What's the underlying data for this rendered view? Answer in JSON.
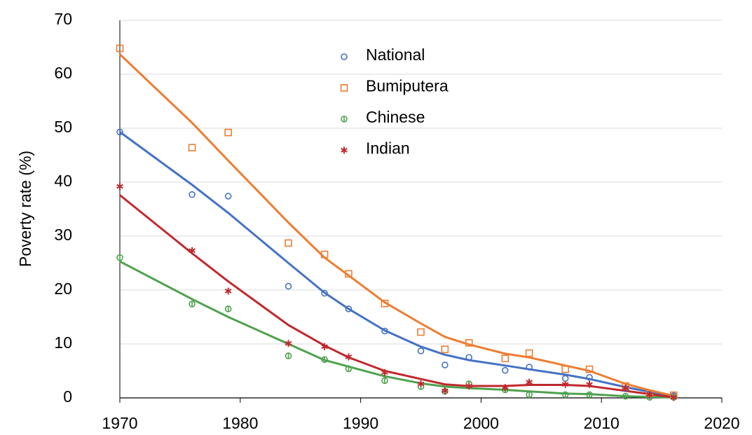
{
  "chart_data": {
    "type": "scatter",
    "y_label": "Poverty rate (%)",
    "x": [
      1970,
      1976,
      1979,
      1984,
      1987,
      1989,
      1992,
      1995,
      1997,
      1999,
      2002,
      2004,
      2007,
      2009,
      2012,
      2014,
      2016
    ],
    "series": [
      {
        "name": "National",
        "color": "#4472c4",
        "marker": "circle",
        "values": [
          49.3,
          37.7,
          37.4,
          20.7,
          19.4,
          16.5,
          12.4,
          8.7,
          6.1,
          7.5,
          5.1,
          5.7,
          3.6,
          3.8,
          1.7,
          0.6,
          0.4
        ],
        "trend": [
          49.3,
          39.5,
          34.3,
          25,
          19.5,
          16.5,
          12.5,
          9.5,
          8,
          7,
          6,
          5.3,
          4.3,
          3.5,
          2,
          1.1,
          0.3
        ]
      },
      {
        "name": "Bumiputera",
        "color": "#ed7d31",
        "marker": "square",
        "values": [
          64.8,
          46.4,
          49.2,
          28.7,
          26.6,
          23.0,
          17.5,
          12.2,
          9.0,
          10.2,
          7.3,
          8.3,
          5.3,
          5.3,
          2.2,
          0.8,
          0.5
        ],
        "trend": [
          63.7,
          51,
          44,
          32.5,
          26,
          22.7,
          17.7,
          13.8,
          11.3,
          9.9,
          8.2,
          7.5,
          6,
          5,
          2.6,
          1.4,
          0.4
        ]
      },
      {
        "name": "Chinese",
        "color": "#4ea24e",
        "marker": "circle-line",
        "values": [
          26.0,
          17.4,
          16.5,
          7.8,
          7.1,
          5.4,
          3.2,
          2.1,
          1.2,
          2.6,
          1.5,
          0.6,
          0.6,
          0.6,
          0.3,
          0.1,
          0.1
        ],
        "trend": [
          25.3,
          18.3,
          15,
          10,
          7,
          5.8,
          4,
          2.7,
          2.1,
          1.8,
          1.5,
          1.2,
          0.8,
          0.7,
          0.3,
          0.2,
          0.1
        ]
      },
      {
        "name": "Indian",
        "color": "#c0282d",
        "marker": "asterisk",
        "values": [
          39.2,
          27.3,
          19.8,
          10.1,
          9.5,
          7.6,
          4.7,
          2.6,
          1.3,
          2.2,
          1.9,
          2.9,
          2.5,
          2.5,
          1.8,
          0.6,
          0.1
        ],
        "trend": [
          37.6,
          26.8,
          21.6,
          13.5,
          9.7,
          7.5,
          5,
          3.5,
          2.5,
          2.2,
          2.2,
          2.4,
          2.4,
          2.2,
          1.3,
          0.7,
          0.1
        ]
      }
    ],
    "xlim": [
      1970,
      2020
    ],
    "xticks": [
      1970,
      1980,
      1990,
      2000,
      2010,
      2020
    ],
    "ylim": [
      0,
      70
    ],
    "yticks": [
      0,
      10,
      20,
      30,
      40,
      50,
      60,
      70
    ],
    "grid": true,
    "legend": "top"
  }
}
